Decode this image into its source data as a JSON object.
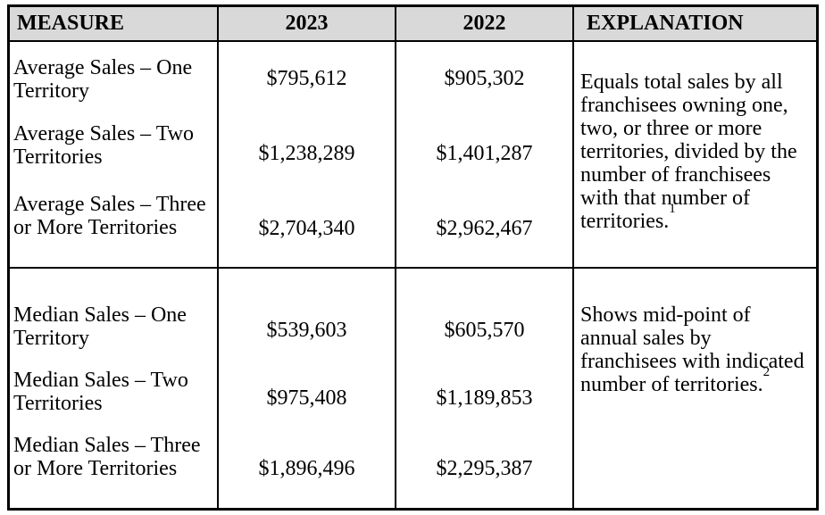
{
  "colors": {
    "header_bg": "#d9d9d9",
    "border": "#000000",
    "text": "#000000",
    "page_bg": "#ffffff"
  },
  "table": {
    "headers": {
      "measure": "MEASURE",
      "col_2023": "2023",
      "col_2022": "2022",
      "explanation": "EXPLANATION"
    },
    "sections": [
      {
        "rows": [
          {
            "measure": "Average Sales – One Territory",
            "val_2023": "$795,612",
            "val_2022": "$905,302"
          },
          {
            "measure": "Average Sales – Two Territories",
            "val_2023": "$1,238,289",
            "val_2022": "$1,401,287"
          },
          {
            "measure": "Average Sales – Three or More Territories",
            "val_2023": "$2,704,340",
            "val_2022": "$2,962,467"
          }
        ],
        "explanation": "Equals total sales by all franchisees owning one, two, or three or more territories, divided by the number of franchisees with that number of territories.",
        "footnote_ref": "1"
      },
      {
        "rows": [
          {
            "measure": "Median Sales – One Territory",
            "val_2023": "$539,603",
            "val_2022": "$605,570"
          },
          {
            "measure": "Median Sales – Two Territories",
            "val_2023": "$975,408",
            "val_2022": "$1,189,853"
          },
          {
            "measure": "Median Sales – Three or More Territories",
            "val_2023": "$1,896,496",
            "val_2022": "$2,295,387"
          }
        ],
        "explanation": "Shows mid-point of annual sales by franchisees with indicated number of territories.",
        "footnote_ref": "2"
      }
    ]
  }
}
